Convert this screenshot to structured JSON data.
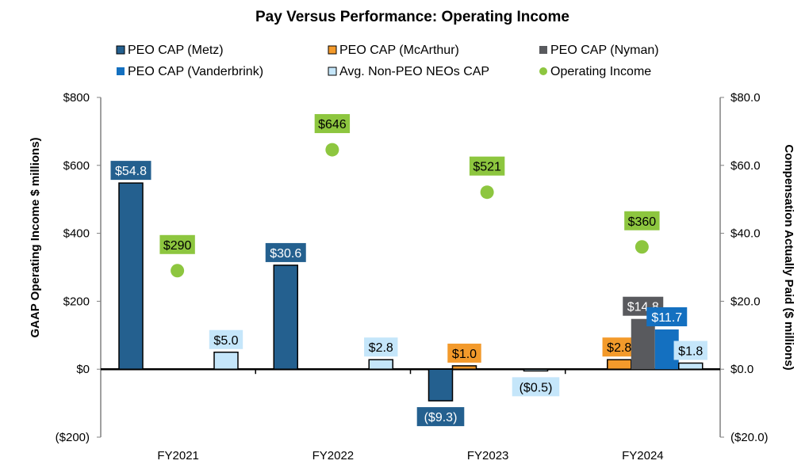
{
  "chart_data": {
    "type": "bar",
    "title": "Pay Versus Performance: Operating Income",
    "ylabel": "GAAP Operating Income $ millions)",
    "y2label": "Compensation Actually Paid ($ millions)",
    "ylim": [
      -200,
      800
    ],
    "y2lim": [
      -20,
      80
    ],
    "yticks": [
      "($200)",
      "$0",
      "$200",
      "$400",
      "$600",
      "$800"
    ],
    "y2ticks": [
      "($20.0)",
      "$0.0",
      "$20.0",
      "$40.0",
      "$60.0",
      "$80.0"
    ],
    "categories": [
      "FY2021",
      "FY2022",
      "FY2023",
      "FY2024"
    ],
    "grid": false,
    "legend_placement": "top",
    "series": [
      {
        "name": "PEO CAP (Metz)",
        "axis": "right",
        "kind": "bar",
        "color": "#24608F",
        "label_color": "#ffffff",
        "values": [
          54.8,
          30.6,
          -9.3,
          null
        ],
        "labels": [
          "$54.8",
          "$30.6",
          "($9.3)",
          null
        ]
      },
      {
        "name": "PEO CAP (McArthur)",
        "axis": "right",
        "kind": "bar",
        "color": "#F39A2B",
        "label_color": "#000000",
        "values": [
          null,
          null,
          1.0,
          2.8
        ],
        "labels": [
          null,
          null,
          "$1.0",
          "$2.8"
        ]
      },
      {
        "name": "PEO CAP (Nyman)",
        "axis": "right",
        "kind": "bar",
        "color": "#595A5E",
        "label_color": "#ffffff",
        "values": [
          null,
          null,
          null,
          14.8
        ],
        "labels": [
          null,
          null,
          null,
          "$14.8"
        ]
      },
      {
        "name": "PEO CAP (Vanderbrink)",
        "axis": "right",
        "kind": "bar",
        "color": "#1470C0",
        "label_color": "#ffffff",
        "values": [
          null,
          null,
          null,
          11.7
        ],
        "labels": [
          null,
          null,
          null,
          "$11.7"
        ]
      },
      {
        "name": "Avg. Non-PEO NEOs CAP",
        "axis": "right",
        "kind": "bar",
        "color": "#C5E6FA",
        "label_color": "#000000",
        "values": [
          5.0,
          2.8,
          -0.5,
          1.8
        ],
        "labels": [
          "$5.0",
          "$2.8",
          "($0.5)",
          "$1.8"
        ]
      },
      {
        "name": "Operating Income",
        "axis": "left",
        "kind": "scatter",
        "color": "#8DC63F",
        "label_color": "#000000",
        "values": [
          290,
          646,
          521,
          360
        ],
        "labels": [
          "$290",
          "$646",
          "$521",
          "$360"
        ]
      }
    ]
  }
}
